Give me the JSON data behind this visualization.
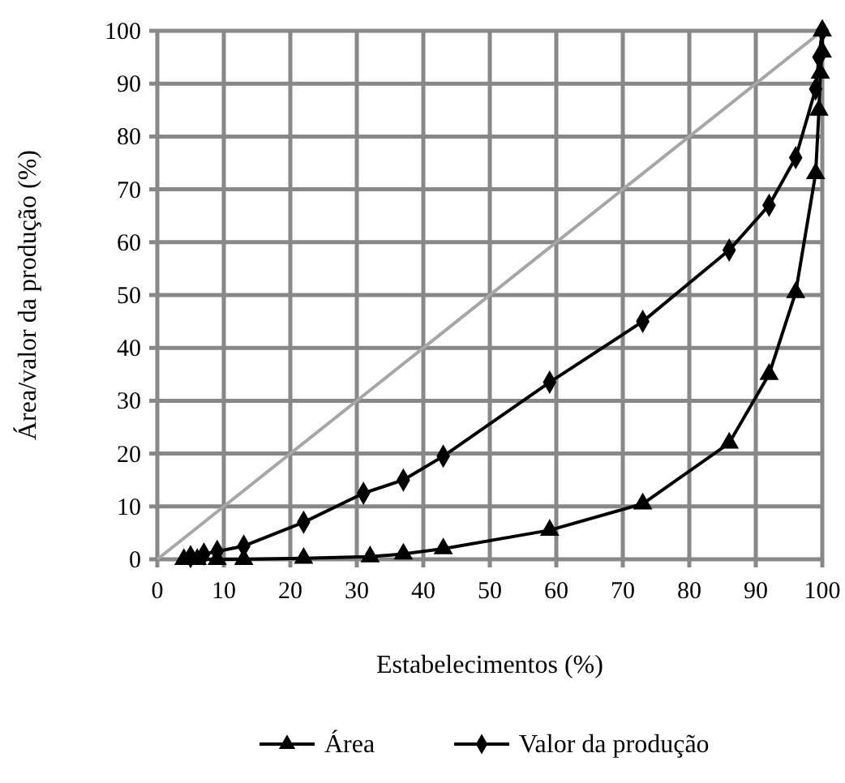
{
  "chart_data": {
    "type": "line",
    "xlabel": "Estabelecimentos (%)",
    "ylabel": "Área/valor da produção (%)",
    "xlim": [
      0,
      100
    ],
    "ylim": [
      0,
      100
    ],
    "xticks": [
      0,
      10,
      20,
      30,
      40,
      50,
      60,
      70,
      80,
      90,
      100
    ],
    "yticks": [
      0,
      10,
      20,
      30,
      40,
      50,
      60,
      70,
      80,
      90,
      100
    ],
    "grid": true,
    "legend": "bottom",
    "series": [
      {
        "color": "#a6a6a6",
        "marker": "none",
        "x": [
          0,
          100
        ],
        "values": [
          0,
          100
        ]
      },
      {
        "name": "Área",
        "color": "#000000",
        "marker": "triangle",
        "x": [
          4,
          6,
          9,
          13,
          22,
          32,
          37,
          43,
          59,
          73,
          86,
          92,
          96,
          99,
          99.5,
          99.7,
          100,
          100
        ],
        "values": [
          0,
          0,
          0,
          0,
          0.2,
          0.5,
          1,
          2,
          5.5,
          10.5,
          22,
          35,
          50.5,
          73,
          85,
          92,
          96,
          100
        ]
      },
      {
        "name": "Valor da produção",
        "color": "#000000",
        "marker": "diamond",
        "x": [
          5,
          7,
          9,
          13,
          22,
          31,
          37,
          43,
          59,
          73,
          86,
          92,
          96,
          99,
          99.5,
          100
        ],
        "values": [
          0.5,
          1,
          1.5,
          2.5,
          7,
          12.5,
          15,
          19.5,
          33.5,
          45,
          58.5,
          67,
          76,
          89,
          95,
          100
        ]
      }
    ]
  }
}
